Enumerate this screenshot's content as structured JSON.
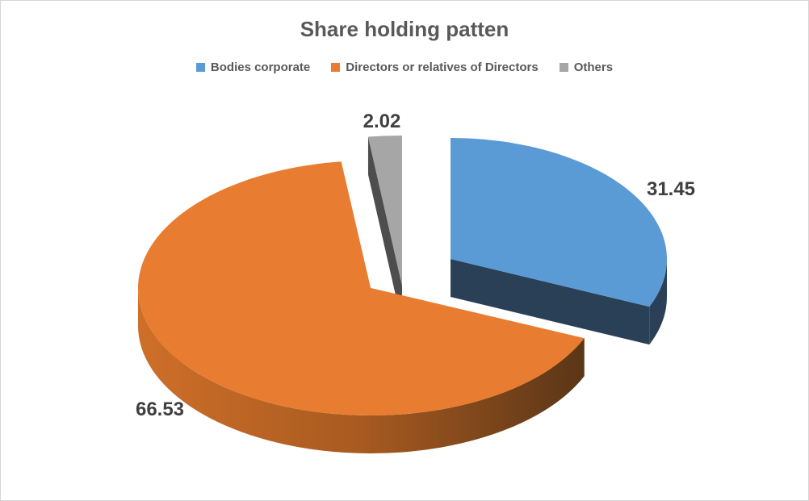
{
  "frame": {
    "background": "#FFFFFF",
    "border_color": "#D6D6D6"
  },
  "chart_data": {
    "type": "pie",
    "effect": "3d-exploded",
    "title": "Share holding patten",
    "legend_position": "top",
    "rotation_start_deg": 0,
    "direction": "clockwise",
    "total": 100,
    "series": [
      {
        "id": "bodies-corporate",
        "name": "Bodies corporate",
        "value": 31.45,
        "label": "31.45",
        "top_color": "#5B9BD5",
        "side_color": "#2A4057",
        "cut_start_color": "#2A4057",
        "cut_end_color": "#2A4057"
      },
      {
        "id": "directors-or-relatives",
        "name": "Directors or relatives of Directors",
        "value": 66.53,
        "label": "66.53",
        "top_color": "#E87D31",
        "side_gradient": [
          "#CE6F29",
          "#A85A20",
          "#5A3617"
        ],
        "cut_start_color": "#E2772C",
        "cut_end_color": "#A6531D"
      },
      {
        "id": "others",
        "name": "Others",
        "value": 2.02,
        "label": "2.02",
        "top_color": "#A6A6A6",
        "side_color": "#4D4D4D",
        "cut_start_color": "#4D4D4D",
        "cut_end_color": "#4D4D4D"
      }
    ],
    "colors": {
      "title_text": "#595959",
      "legend_text": "#595959",
      "data_label_text": "#404040"
    }
  }
}
